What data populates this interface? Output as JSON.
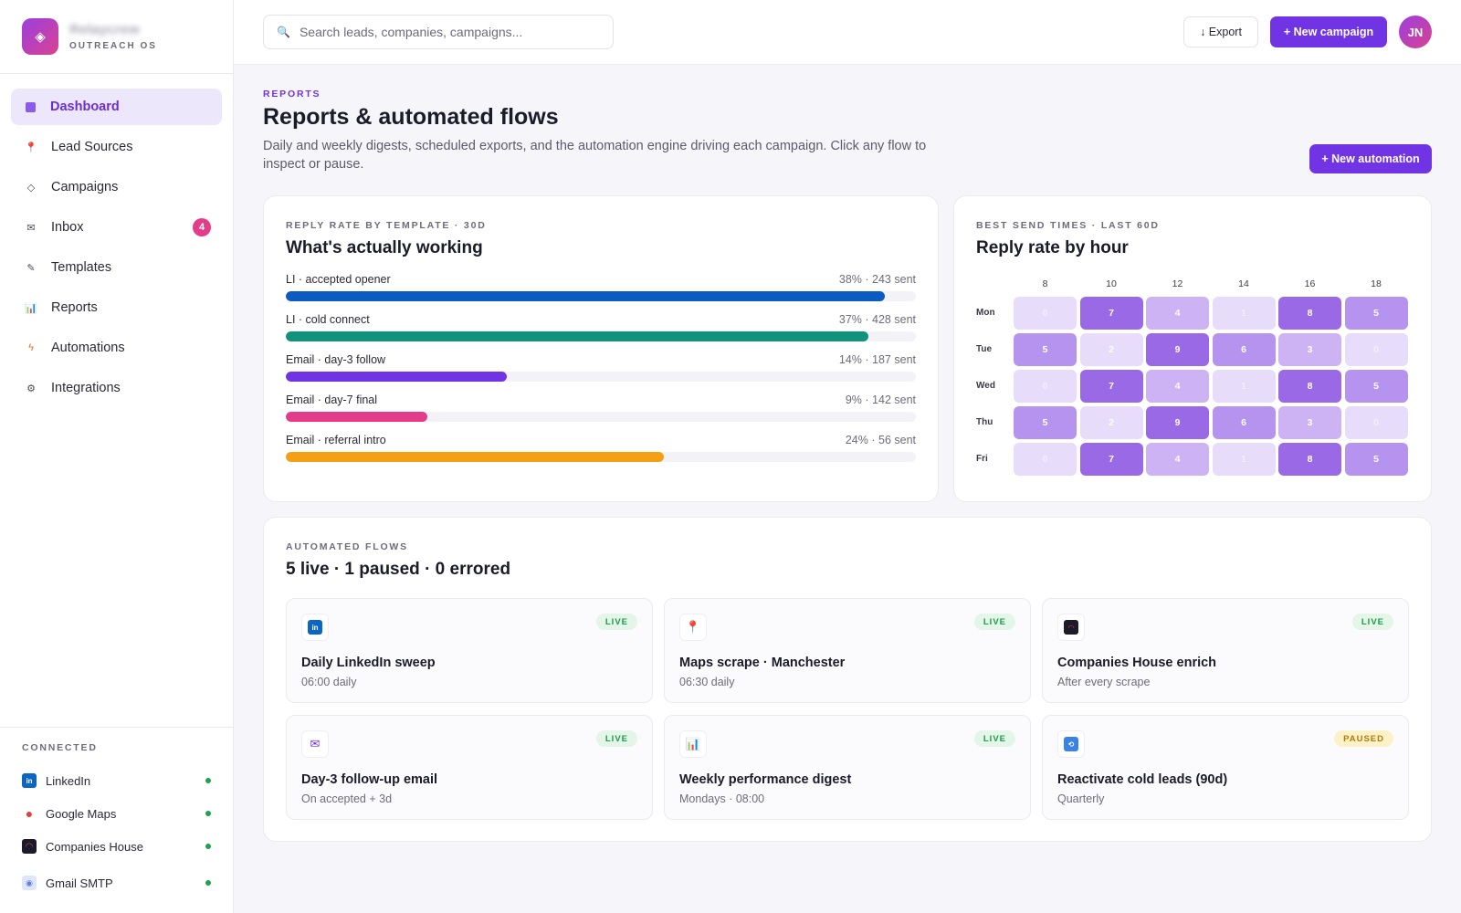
{
  "brand": {
    "name": "Relaycrew",
    "subtitle": "OUTREACH OS",
    "logo_icon": "diamond-icon"
  },
  "sidebar": {
    "items": [
      {
        "label": "Dashboard",
        "icon": "grid-square-icon",
        "active": true
      },
      {
        "label": "Lead Sources",
        "icon": "pin-icon",
        "active": false
      },
      {
        "label": "Campaigns",
        "icon": "diamond-outline-icon",
        "active": false
      },
      {
        "label": "Inbox",
        "icon": "envelope-icon",
        "active": false,
        "badge": "4"
      },
      {
        "label": "Templates",
        "icon": "pen-icon",
        "active": false
      },
      {
        "label": "Reports",
        "icon": "bar-chart-icon",
        "active": false
      },
      {
        "label": "Automations",
        "icon": "lightning-icon",
        "active": false
      },
      {
        "label": "Integrations",
        "icon": "gear-icon",
        "active": false
      }
    ],
    "connected": {
      "title": "CONNECTED",
      "items": [
        {
          "label": "LinkedIn",
          "icon": "linkedin-icon",
          "color": "#0a66c2",
          "glyph": "in"
        },
        {
          "label": "Google Maps",
          "icon": "map-pin-icon",
          "color": "#e0433a",
          "glyph": ""
        },
        {
          "label": "Companies House",
          "icon": "companies-house-icon",
          "color": "#1c1b29",
          "glyph": ""
        },
        {
          "label": "Gmail SMTP",
          "icon": "gmail-icon",
          "color": "#8aa4e8",
          "glyph": ""
        }
      ]
    }
  },
  "topbar": {
    "search_placeholder": "Search leads, companies, campaigns...",
    "export_label": "↓ Export",
    "new_campaign_label": "+ New campaign",
    "avatar_initials": "JN"
  },
  "page": {
    "eyebrow": "REPORTS",
    "title": "Reports & automated flows",
    "description": "Daily and weekly digests, scheduled exports, and the automation engine driving each campaign. Click any flow to inspect or pause.",
    "new_automation_label": "+ New automation"
  },
  "reply_rate": {
    "eyebrow": "REPLY RATE BY TEMPLATE · 30D",
    "title": "What's actually working",
    "templates": [
      {
        "label": "LI · accepted opener",
        "stat": "38% · 243 sent",
        "fill": 0.95,
        "color": "#0b5bc0"
      },
      {
        "label": "LI · cold connect",
        "stat": "37% · 428 sent",
        "fill": 0.925,
        "color": "#11927a"
      },
      {
        "label": "Email · day-3 follow",
        "stat": "14% · 187 sent",
        "fill": 0.35,
        "color": "#7134e4"
      },
      {
        "label": "Email · day-7 final",
        "stat": "9% · 142 sent",
        "fill": 0.225,
        "color": "#e43c8a"
      },
      {
        "label": "Email · referral intro",
        "stat": "24% · 56 sent",
        "fill": 0.6,
        "color": "#f5a014"
      }
    ]
  },
  "send_times": {
    "eyebrow": "BEST SEND TIMES · LAST 60D",
    "title": "Reply rate by hour",
    "hours": [
      "8",
      "10",
      "12",
      "14",
      "16",
      "18"
    ],
    "days": [
      "Mon",
      "Tue",
      "Wed",
      "Thu",
      "Fri"
    ],
    "values": [
      [
        "0",
        "7",
        "4",
        "1",
        "8",
        "5"
      ],
      [
        "5",
        "2",
        "9",
        "6",
        "3",
        "0"
      ],
      [
        "0",
        "7",
        "4",
        "1",
        "8",
        "5"
      ],
      [
        "5",
        "2",
        "9",
        "6",
        "3",
        "0"
      ],
      [
        "0",
        "7",
        "4",
        "1",
        "8",
        "5"
      ]
    ]
  },
  "flows": {
    "eyebrow": "AUTOMATED FLOWS",
    "title": "5 live · 1 paused · 0 errored",
    "items": [
      {
        "name": "Daily LinkedIn sweep",
        "schedule": "06:00 daily",
        "status": "LIVE",
        "icon": "linkedin-icon"
      },
      {
        "name": "Maps scrape · Manchester",
        "schedule": "06:30 daily",
        "status": "LIVE",
        "icon": "map-pin-icon"
      },
      {
        "name": "Companies House enrich",
        "schedule": "After every scrape",
        "status": "LIVE",
        "icon": "companies-house-icon"
      },
      {
        "name": "Day-3 follow-up email",
        "schedule": "On accepted + 3d",
        "status": "LIVE",
        "icon": "envelope-icon"
      },
      {
        "name": "Weekly performance digest",
        "schedule": "Mondays · 08:00",
        "status": "LIVE",
        "icon": "bar-chart-icon"
      },
      {
        "name": "Reactivate cold leads (90d)",
        "schedule": "Quarterly",
        "status": "PAUSED",
        "icon": "repeat-icon"
      }
    ]
  },
  "colors": {
    "accent": "#7134e4",
    "badge": "#e43c8a",
    "live": "#1f9a4a",
    "paused": "#b07a06"
  }
}
